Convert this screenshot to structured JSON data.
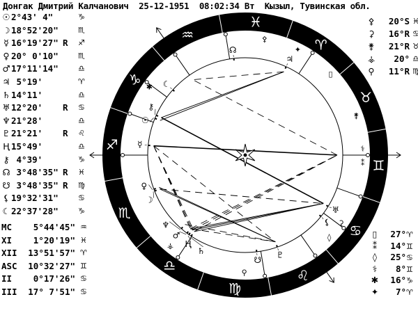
{
  "header": {
    "name": "Донгак Дмитрий Калчанович",
    "date": "25-12-1951",
    "time": "08:02:34 Вт",
    "place": "Кызыл, Тувинская обл."
  },
  "sign_glyphs": [
    "♈",
    "♉",
    "♊",
    "♋",
    "♌",
    "♍",
    "♎",
    "♏",
    "♐",
    "♑",
    "♒",
    "♓"
  ],
  "planets": [
    {
      "glyph": "☉",
      "pos": "2°43' 4\"",
      "retro": "",
      "sign": "♑"
    },
    {
      "glyph": "☽",
      "pos": "18°52'20\"",
      "retro": "",
      "sign": "♏"
    },
    {
      "glyph": "☿",
      "pos": "16°19'27\"",
      "retro": "R",
      "sign": "♐"
    },
    {
      "glyph": "♀",
      "pos": "20° 0'10\"",
      "retro": "",
      "sign": "♏"
    },
    {
      "glyph": "♂",
      "pos": "17°11'14\"",
      "retro": "",
      "sign": "♎"
    },
    {
      "glyph": "♃",
      "pos": " 5°19'",
      "retro": "",
      "sign": "♈"
    },
    {
      "glyph": "♄",
      "pos": "14°11'",
      "retro": "",
      "sign": "♎"
    },
    {
      "glyph": "♅",
      "pos": "12°20'",
      "retro": "R",
      "sign": "♋"
    },
    {
      "glyph": "♆",
      "pos": "21°28'",
      "retro": "",
      "sign": "♎"
    },
    {
      "glyph": "♇",
      "pos": "21°21'",
      "retro": "R",
      "sign": "♌"
    },
    {
      "glyph": "Ⱨ",
      "pos": "15°49'",
      "retro": "",
      "sign": "♎"
    },
    {
      "glyph": "⚷",
      "pos": " 4°39'",
      "retro": "",
      "sign": "♑"
    },
    {
      "glyph": "☊",
      "pos": " 3°48'35\"",
      "retro": "R",
      "sign": "♓"
    },
    {
      "glyph": "☋",
      "pos": " 3°48'35\"",
      "retro": "R",
      "sign": "♍"
    },
    {
      "glyph": "⚸",
      "pos": "19°32'31\"",
      "retro": "",
      "sign": "♋"
    },
    {
      "glyph": "☾",
      "pos": "22°37'28\"",
      "retro": "",
      "sign": "♑"
    }
  ],
  "houses": [
    {
      "label": "MC",
      "pos": "5°44'45\"",
      "sign": "♒"
    },
    {
      "label": "XI",
      "pos": "1°20'19\"",
      "sign": "♓"
    },
    {
      "label": "XII",
      "pos": "13°51'57\"",
      "sign": "♈"
    },
    {
      "label": "ASC",
      "pos": "10°32'27\"",
      "sign": "♊"
    },
    {
      "label": "II",
      "pos": "0°17'26\"",
      "sign": "♋"
    },
    {
      "label": "III",
      "pos": "17° 7'51\"",
      "sign": "♋"
    }
  ],
  "extra_top": [
    {
      "glyph": "⚴",
      "pos": "20°S",
      "sign": "♓"
    },
    {
      "glyph": "⚳",
      "pos": "16°R",
      "sign": "♋"
    },
    {
      "glyph": "⚵",
      "pos": "21°R",
      "sign": "♉"
    },
    {
      "glyph": "⚶",
      "pos": "20°",
      "sign": "♎"
    },
    {
      "glyph": "⚲",
      "pos": "11°R",
      "sign": "♍"
    }
  ],
  "extra_bottom": [
    {
      "glyph": "▯",
      "pos": "27°",
      "sign": "♈"
    },
    {
      "glyph": "⁑",
      "pos": "14°",
      "sign": "♊"
    },
    {
      "glyph": "◊",
      "pos": "25°",
      "sign": "♋"
    },
    {
      "glyph": "⚕",
      "pos": "8°",
      "sign": "♊"
    },
    {
      "glyph": "✱",
      "pos": "16°",
      "sign": "♑"
    },
    {
      "glyph": "✦",
      "pos": "7°",
      "sign": "♈"
    }
  ],
  "colors": {
    "ring": "#000000",
    "background": "#ffffff",
    "lines": "#000000"
  }
}
